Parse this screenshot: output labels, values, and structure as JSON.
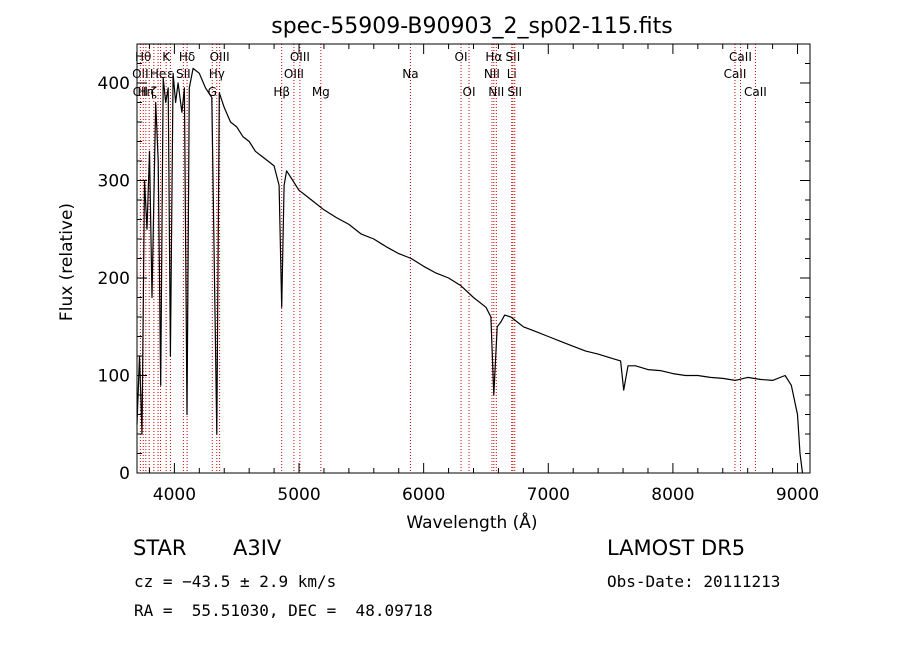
{
  "chart_data": {
    "type": "line",
    "title": "spec-55909-B90903_2_sp02-115.fits",
    "xlabel": "Wavelength (Å)",
    "ylabel": "Flux (relative)",
    "xlim": [
      3700,
      9100
    ],
    "ylim": [
      0,
      440
    ],
    "xticks": [
      4000,
      5000,
      6000,
      7000,
      8000,
      9000
    ],
    "yticks": [
      0,
      100,
      200,
      300,
      400
    ],
    "grid": false,
    "line_color": "#000000",
    "marker_line_color": "#cc0000",
    "series": [
      {
        "x": [
          3700,
          3720,
          3740,
          3760,
          3780,
          3800,
          3820,
          3850,
          3870,
          3890,
          3910,
          3930,
          3950,
          3968,
          3990,
          4010,
          4030,
          4060,
          4080,
          4101,
          4120,
          4150,
          4200,
          4250,
          4300,
          4340,
          4360,
          4400,
          4450,
          4500,
          4550,
          4600,
          4650,
          4700,
          4750,
          4800,
          4840,
          4861,
          4880,
          4900,
          4950,
          5000,
          5050,
          5100,
          5200,
          5300,
          5400,
          5500,
          5600,
          5700,
          5800,
          5900,
          6000,
          6100,
          6200,
          6300,
          6400,
          6500,
          6540,
          6563,
          6590,
          6620,
          6650,
          6700,
          6750,
          6800,
          6900,
          7000,
          7100,
          7200,
          7300,
          7400,
          7500,
          7580,
          7605,
          7640,
          7700,
          7800,
          7900,
          8000,
          8100,
          8200,
          8300,
          8400,
          8500,
          8600,
          8700,
          8800,
          8900,
          8950,
          9000,
          9020,
          9040
        ],
        "y": [
          50,
          120,
          40,
          300,
          250,
          330,
          180,
          380,
          320,
          90,
          405,
          380,
          395,
          120,
          410,
          380,
          400,
          370,
          395,
          60,
          395,
          415,
          410,
          395,
          385,
          40,
          390,
          375,
          360,
          355,
          345,
          340,
          330,
          325,
          320,
          315,
          295,
          170,
          295,
          310,
          300,
          290,
          285,
          280,
          270,
          262,
          255,
          245,
          240,
          232,
          225,
          220,
          212,
          205,
          200,
          192,
          180,
          170,
          160,
          80,
          150,
          155,
          162,
          160,
          155,
          150,
          145,
          140,
          135,
          130,
          125,
          122,
          118,
          115,
          85,
          110,
          110,
          106,
          105,
          102,
          100,
          100,
          98,
          97,
          95,
          98,
          96,
          95,
          100,
          90,
          60,
          20,
          0
        ]
      }
    ],
    "lines": [
      {
        "x": 3727,
        "row1": "",
        "row2": "OII",
        "row3": "CII"
      },
      {
        "x": 3750,
        "row1": "Hθ",
        "row2": "",
        "row3": ""
      },
      {
        "x": 3771,
        "row1": "",
        "row2": "",
        "row3": "Hη"
      },
      {
        "x": 3798,
        "row1": "",
        "row2": "",
        "row3": ""
      },
      {
        "x": 3835,
        "row1": "",
        "row2": "",
        "row3": "ζ"
      },
      {
        "x": 3869,
        "row1": "",
        "row2": "He",
        "row3": ""
      },
      {
        "x": 3889,
        "row1": "",
        "row2": "",
        "row3": ""
      },
      {
        "x": 3934,
        "row1": "K",
        "row2": "",
        "row3": ""
      },
      {
        "x": 3968,
        "row1": "",
        "row2": "ε",
        "row3": ""
      },
      {
        "x": 4072,
        "row1": "",
        "row2": "SII",
        "row3": ""
      },
      {
        "x": 4102,
        "row1": "Hδ",
        "row2": "",
        "row3": ""
      },
      {
        "x": 4304,
        "row1": "",
        "row2": "",
        "row3": "G"
      },
      {
        "x": 4340,
        "row1": "",
        "row2": "Hγ",
        "row3": ""
      },
      {
        "x": 4363,
        "row1": "OIII",
        "row2": "",
        "row3": ""
      },
      {
        "x": 4861,
        "row1": "",
        "row2": "",
        "row3": "Hβ"
      },
      {
        "x": 4959,
        "row1": "",
        "row2": "OIII",
        "row3": ""
      },
      {
        "x": 5007,
        "row1": "OIII",
        "row2": "",
        "row3": ""
      },
      {
        "x": 5175,
        "row1": "",
        "row2": "",
        "row3": "Mg"
      },
      {
        "x": 5894,
        "row1": "",
        "row2": "Na",
        "row3": ""
      },
      {
        "x": 6300,
        "row1": "OI",
        "row2": "",
        "row3": ""
      },
      {
        "x": 6364,
        "row1": "",
        "row2": "",
        "row3": "OI"
      },
      {
        "x": 6548,
        "row1": "",
        "row2": "NII",
        "row3": ""
      },
      {
        "x": 6563,
        "row1": "Hα",
        "row2": "",
        "row3": ""
      },
      {
        "x": 6583,
        "row1": "",
        "row2": "",
        "row3": "NII"
      },
      {
        "x": 6707,
        "row1": "",
        "row2": "Li",
        "row3": ""
      },
      {
        "x": 6716,
        "row1": "SII",
        "row2": "",
        "row3": ""
      },
      {
        "x": 6731,
        "row1": "",
        "row2": "",
        "row3": "SII"
      },
      {
        "x": 8498,
        "row1": "",
        "row2": "CaII",
        "row3": ""
      },
      {
        "x": 8542,
        "row1": "CaII",
        "row2": "",
        "row3": ""
      },
      {
        "x": 8662,
        "row1": "",
        "row2": "",
        "row3": "CaII"
      }
    ]
  },
  "info": {
    "object_type": "STAR",
    "subclass": "A3IV",
    "survey": "LAMOST DR5",
    "cz_line": "cz = −43.5 ± 2.9 km/s",
    "obs_date": "Obs-Date: 20111213",
    "radec_line": "RA =  55.51030, DEC =  48.09718"
  }
}
